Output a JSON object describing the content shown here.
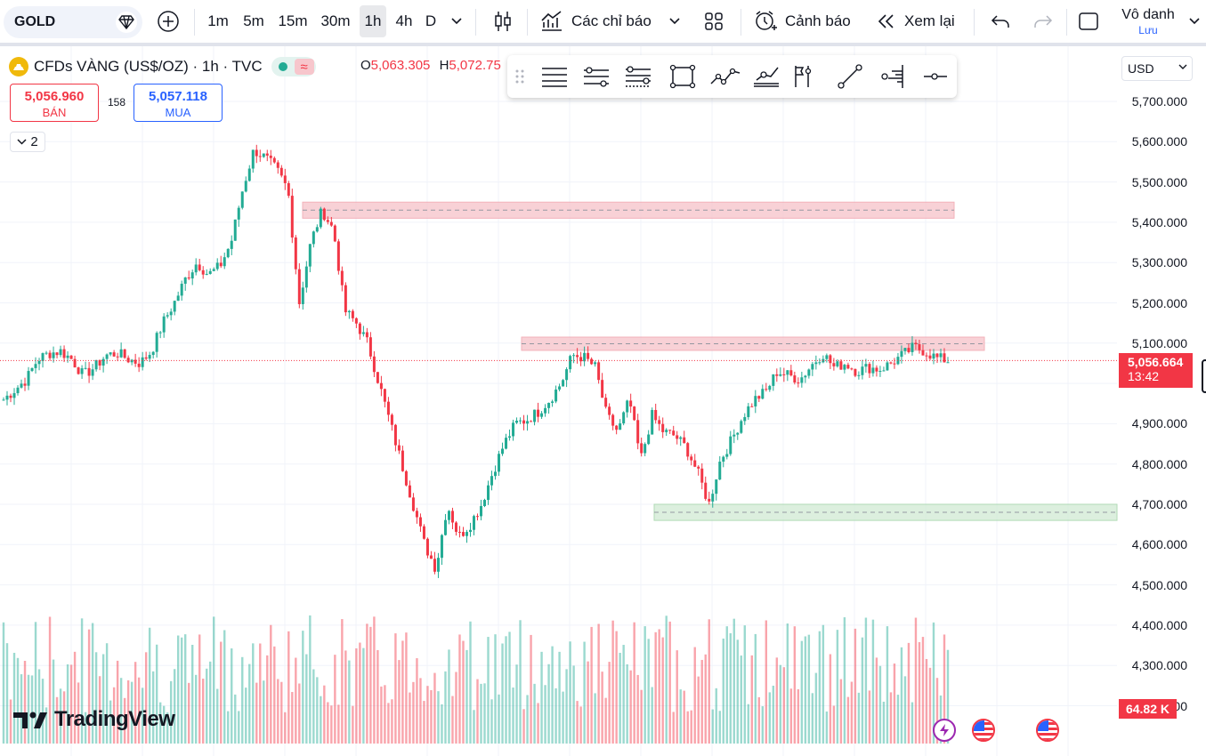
{
  "toolbar": {
    "symbol": "GOLD",
    "intervals": [
      "1m",
      "5m",
      "15m",
      "30m",
      "1h",
      "4h",
      "D"
    ],
    "active_interval": "1h",
    "indicators_label": "Các chỉ báo",
    "alerts_label": "Cảnh báo",
    "replay_label": "Xem lại",
    "account_name": "Vô danh",
    "account_sub": "Lưu"
  },
  "legend": {
    "title": "CFDs VÀNG (US$/OZ) · 1h · TVC",
    "open_label": "O",
    "open_value": "5,063.305",
    "high_label": "H",
    "high_value": "5,072.75",
    "sell_price": "5,056.960",
    "sell_label": "BÁN",
    "buy_price": "5,057.118",
    "buy_label": "MUA",
    "spread": "158",
    "collapsed_count": "2"
  },
  "price_axis": {
    "currency": "USD",
    "labels": [
      "5,700.000",
      "5,600.000",
      "5,500.000",
      "5,400.000",
      "5,300.000",
      "5,200.000",
      "5,100.000",
      "4,900.000",
      "4,800.000",
      "4,700.000",
      "4,600.000",
      "4,500.000",
      "4,400.000",
      "4,300.000",
      "4,200.000"
    ],
    "last_price": "5,056.664",
    "countdown": "13:42",
    "volume_label": "64.82 K"
  },
  "colors": {
    "up": "#22ab94",
    "down": "#f23645",
    "zone_resistance": "#f7c6cc",
    "zone_support": "#d4ecd6",
    "accent": "#2962ff"
  },
  "zones": [
    {
      "type": "resistance",
      "from": 5410,
      "to": 5450
    },
    {
      "type": "resistance",
      "from": 5082,
      "to": 5115
    },
    {
      "type": "support",
      "from": 4660,
      "to": 4700
    }
  ],
  "brand": "TradingView",
  "chart_data": {
    "type": "candlestick",
    "symbol": "CFDs VÀNG (US$/OZ)",
    "interval": "1h",
    "ylim": [
      4150,
      5760
    ],
    "last_price": 5056.664,
    "price_path": [
      4960,
      4985,
      5010,
      5060,
      5075,
      5080,
      5060,
      5020,
      5040,
      5070,
      5075,
      5060,
      5050,
      5080,
      5150,
      5200,
      5260,
      5300,
      5270,
      5290,
      5350,
      5480,
      5580,
      5560,
      5530,
      5480,
      5200,
      5350,
      5430,
      5380,
      5180,
      5150,
      5100,
      5000,
      4900,
      4800,
      4700,
      4600,
      4540,
      4700,
      4620,
      4650,
      4700,
      4780,
      4850,
      4900,
      4910,
      4930,
      4960,
      5000,
      5070,
      5065,
      5040,
      4920,
      4880,
      4960,
      4810,
      4920,
      4880,
      4870,
      4840,
      4780,
      4700,
      4810,
      4860,
      4920,
      4960,
      4980,
      5030,
      5020,
      5010,
      5045,
      5075,
      5040,
      5050,
      5030,
      5040,
      5035,
      5050,
      5070,
      5090,
      5080,
      5063,
      5057
    ]
  }
}
